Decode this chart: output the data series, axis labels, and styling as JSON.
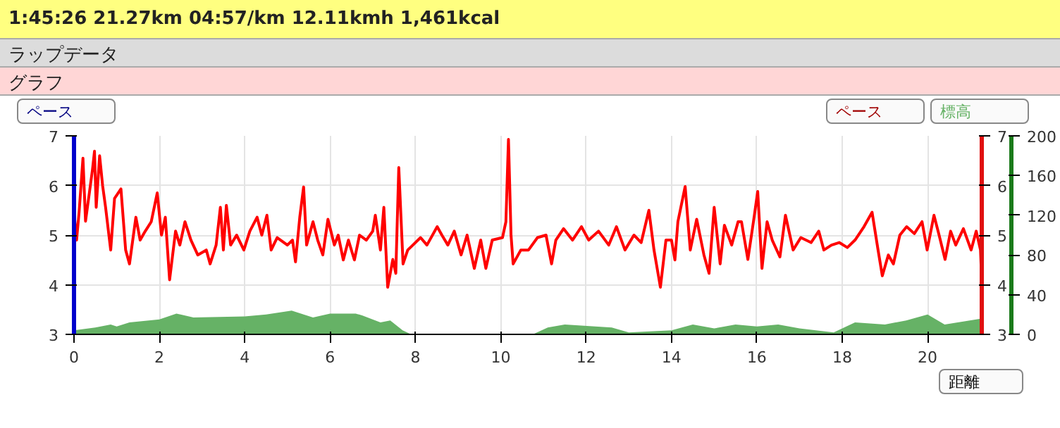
{
  "chart_data": {
    "type": "line",
    "title": "1:45:26  21.27km  04:57/km  12.11kmh  1,461kcal",
    "annotations": [
      "ラップデータ",
      "グラフ"
    ],
    "xlabel": "距離",
    "ylabel": "ペース",
    "y2label": "ペース",
    "y3label": "標高",
    "xlim": [
      0,
      21.27
    ],
    "xticks": [
      0,
      2,
      4,
      6,
      8,
      10,
      12,
      14,
      16,
      18,
      20
    ],
    "ylim": [
      3,
      7
    ],
    "yticks": [
      3,
      4,
      5,
      6,
      7
    ],
    "y2lim": [
      3,
      7
    ],
    "y2ticks": [
      3,
      4,
      5,
      6,
      7
    ],
    "y3lim": [
      0,
      200
    ],
    "y3ticks": [
      0,
      40,
      80,
      120,
      160,
      200
    ],
    "grid": true,
    "series": [
      {
        "color": "#ff0000",
        "x": [
          0,
          0.06,
          0.12,
          0.21,
          0.27,
          0.36,
          0.43,
          0.48,
          0.52,
          0.6,
          0.67,
          0.74,
          0.86,
          0.95,
          1.1,
          1.21,
          1.3,
          1.45,
          1.55,
          1.67,
          1.81,
          1.95,
          2.05,
          2.14,
          2.24,
          2.38,
          2.48,
          2.6,
          2.74,
          2.9,
          3.1,
          3.19,
          3.33,
          3.43,
          3.5,
          3.57,
          3.67,
          3.81,
          3.98,
          4.12,
          4.29,
          4.4,
          4.52,
          4.62,
          4.76,
          5.0,
          5.12,
          5.19,
          5.29,
          5.38,
          5.45,
          5.6,
          5.71,
          5.83,
          5.95,
          6.1,
          6.19,
          6.31,
          6.43,
          6.57,
          6.69,
          6.85,
          7.0,
          7.06,
          7.18,
          7.26,
          7.35,
          7.47,
          7.54,
          7.61,
          7.71,
          7.82,
          7.94,
          8.12,
          8.27,
          8.51,
          8.62,
          8.76,
          8.91,
          9.07,
          9.21,
          9.38,
          9.53,
          9.65,
          9.8,
          10.04,
          10.12,
          10.18,
          10.24,
          10.29,
          10.47,
          10.65,
          10.86,
          11.06,
          11.19,
          11.29,
          11.47,
          11.68,
          11.89,
          12.06,
          12.29,
          12.53,
          12.71,
          12.91,
          13.12,
          13.29,
          13.47,
          13.59,
          13.74,
          13.87,
          14.0,
          14.08,
          14.15,
          14.32,
          14.44,
          14.59,
          14.76,
          14.88,
          15.0,
          15.14,
          15.24,
          15.41,
          15.56,
          15.64,
          15.79,
          15.92,
          16.02,
          16.12,
          16.24,
          16.36,
          16.54,
          16.67,
          16.85,
          17.03,
          17.27,
          17.45,
          17.57,
          17.75,
          17.93,
          18.12,
          18.3,
          18.51,
          18.7,
          18.84,
          18.94,
          19.08,
          19.2,
          19.35,
          19.51,
          19.69,
          19.87,
          19.99,
          20.15,
          20.27,
          20.41,
          20.54,
          20.66,
          20.84,
          21.02,
          21.14,
          21.24,
          21.27
        ],
        "values": [
          5.47,
          4.9,
          5.47,
          6.55,
          5.28,
          5.85,
          6.3,
          6.69,
          5.56,
          6.6,
          6.0,
          5.56,
          4.7,
          5.74,
          5.93,
          4.7,
          4.42,
          5.36,
          4.9,
          5.08,
          5.27,
          5.85,
          5.0,
          5.36,
          4.1,
          5.08,
          4.8,
          5.27,
          4.9,
          4.6,
          4.7,
          4.42,
          4.8,
          5.56,
          4.7,
          5.6,
          4.8,
          5.0,
          4.7,
          5.08,
          5.36,
          5.0,
          5.4,
          4.7,
          4.95,
          4.8,
          4.9,
          4.46,
          5.36,
          5.97,
          4.8,
          5.27,
          4.9,
          4.6,
          5.32,
          4.8,
          5.0,
          4.5,
          4.9,
          4.5,
          5.0,
          4.9,
          5.08,
          5.4,
          4.7,
          5.56,
          3.95,
          4.51,
          4.23,
          6.36,
          4.42,
          4.7,
          4.8,
          4.95,
          4.8,
          5.17,
          5.0,
          4.8,
          5.08,
          4.6,
          5.0,
          4.33,
          4.9,
          4.33,
          4.9,
          4.95,
          5.27,
          6.93,
          5.0,
          4.42,
          4.7,
          4.7,
          4.95,
          5.0,
          4.42,
          4.9,
          5.13,
          4.9,
          5.17,
          4.9,
          5.08,
          4.8,
          5.17,
          4.7,
          5.0,
          4.85,
          5.5,
          4.7,
          3.95,
          4.9,
          4.9,
          4.5,
          5.27,
          5.98,
          4.7,
          5.32,
          4.6,
          4.23,
          5.56,
          4.42,
          5.2,
          4.8,
          5.27,
          5.27,
          4.51,
          5.27,
          5.88,
          4.33,
          5.27,
          4.9,
          4.56,
          5.4,
          4.7,
          4.95,
          4.85,
          5.08,
          4.7,
          4.8,
          4.85,
          4.75,
          4.9,
          5.17,
          5.46,
          4.7,
          4.18,
          4.6,
          4.42,
          5.0,
          5.17,
          5.03,
          5.27,
          4.7,
          5.4,
          5.0,
          4.51,
          5.08,
          4.8,
          5.13,
          4.7,
          5.08,
          4.7,
          4.04
        ]
      },
      {
        "type": "area",
        "axis": "y3",
        "color": "#66b266",
        "x": [
          0,
          0.5,
          0.86,
          1.0,
          1.3,
          2.0,
          2.4,
          2.8,
          4.0,
          4.5,
          5.1,
          5.6,
          6.0,
          6.6,
          6.76,
          7.18,
          7.41,
          7.7,
          7.9,
          10.75,
          11.1,
          11.5,
          12.6,
          13.0,
          14.0,
          14.5,
          15.0,
          15.5,
          16.0,
          16.5,
          17.0,
          17.8,
          18.3,
          19.0,
          19.5,
          20.0,
          20.4,
          21.27
        ],
        "values": [
          4,
          7,
          10,
          8,
          12,
          15,
          21,
          17,
          18,
          20,
          24,
          17,
          21,
          21,
          19,
          12,
          14,
          4,
          0,
          0,
          7,
          10,
          7,
          2,
          4,
          10,
          6,
          10,
          8,
          10,
          6,
          2,
          12,
          10,
          14,
          20,
          10,
          16
        ]
      }
    ]
  }
}
